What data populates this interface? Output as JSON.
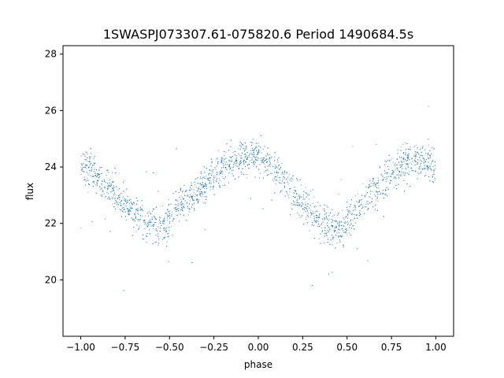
{
  "chart_data": {
    "type": "scatter",
    "title": "1SWASPJ073307.61-075820.6 Period 1490684.5s",
    "xlabel": "phase",
    "ylabel": "flux",
    "xlim": [
      -1.1,
      1.1
    ],
    "ylim": [
      18.0,
      28.3
    ],
    "xticks": [
      -1.0,
      -0.75,
      -0.5,
      -0.25,
      0.0,
      0.25,
      0.5,
      0.75,
      1.0
    ],
    "xtick_labels": [
      "−1.00",
      "−0.75",
      "−0.50",
      "−0.25",
      "0.00",
      "0.25",
      "0.50",
      "0.75",
      "1.00"
    ],
    "yticks": [
      20,
      22,
      24,
      26,
      28
    ],
    "ytick_labels": [
      "20",
      "22",
      "24",
      "26",
      "28"
    ],
    "grid": false,
    "legend": "none",
    "point_color": "#1f77b4",
    "series": [
      {
        "values_note": "",
        "x": [
          -1.0,
          -0.98,
          -0.95,
          -0.92,
          -0.9,
          -0.88,
          -0.85,
          -0.82,
          -0.8,
          -0.78,
          -0.75,
          -0.72,
          -0.7,
          -0.68,
          -0.65,
          -0.62,
          -0.6,
          -0.58,
          -0.55,
          -0.52,
          -0.5,
          -0.48,
          -0.45,
          -0.42,
          -0.4,
          -0.38,
          -0.35,
          -0.32,
          -0.3,
          -0.28,
          -0.25,
          -0.22,
          -0.2,
          -0.18,
          -0.15,
          -0.12,
          -0.1,
          -0.08,
          -0.05,
          -0.02,
          0.0,
          0.02,
          0.05,
          0.08,
          0.1,
          0.12,
          0.15,
          0.18,
          0.2,
          0.22,
          0.25,
          0.28,
          0.3,
          0.32,
          0.35,
          0.38,
          0.4,
          0.42,
          0.45,
          0.48,
          0.5,
          0.52,
          0.55,
          0.58,
          0.6,
          0.62,
          0.65,
          0.68,
          0.7,
          0.72,
          0.75,
          0.78,
          0.8,
          0.82,
          0.85,
          0.88,
          0.9,
          0.92,
          0.95,
          0.98,
          1.0
        ],
        "y": [
          24.0,
          23.9,
          24.1,
          23.8,
          23.7,
          23.5,
          23.3,
          23.1,
          23.0,
          22.8,
          22.7,
          22.5,
          22.4,
          22.3,
          22.1,
          22.0,
          22.0,
          21.9,
          21.8,
          22.0,
          22.2,
          22.4,
          22.6,
          22.8,
          22.9,
          23.0,
          23.1,
          23.3,
          23.4,
          23.6,
          23.7,
          23.9,
          24.0,
          24.1,
          24.2,
          24.2,
          24.3,
          24.4,
          24.5,
          24.4,
          24.3,
          24.2,
          24.1,
          24.0,
          23.8,
          23.7,
          23.5,
          23.3,
          23.1,
          22.9,
          22.8,
          22.6,
          22.4,
          22.3,
          22.1,
          22.0,
          21.9,
          21.8,
          21.8,
          21.9,
          22.1,
          22.3,
          22.5,
          22.7,
          22.8,
          23.0,
          23.1,
          23.3,
          23.5,
          23.6,
          23.7,
          23.8,
          24.0,
          24.1,
          24.2,
          24.3,
          24.3,
          24.2,
          24.1,
          24.0,
          24.0
        ]
      }
    ]
  }
}
